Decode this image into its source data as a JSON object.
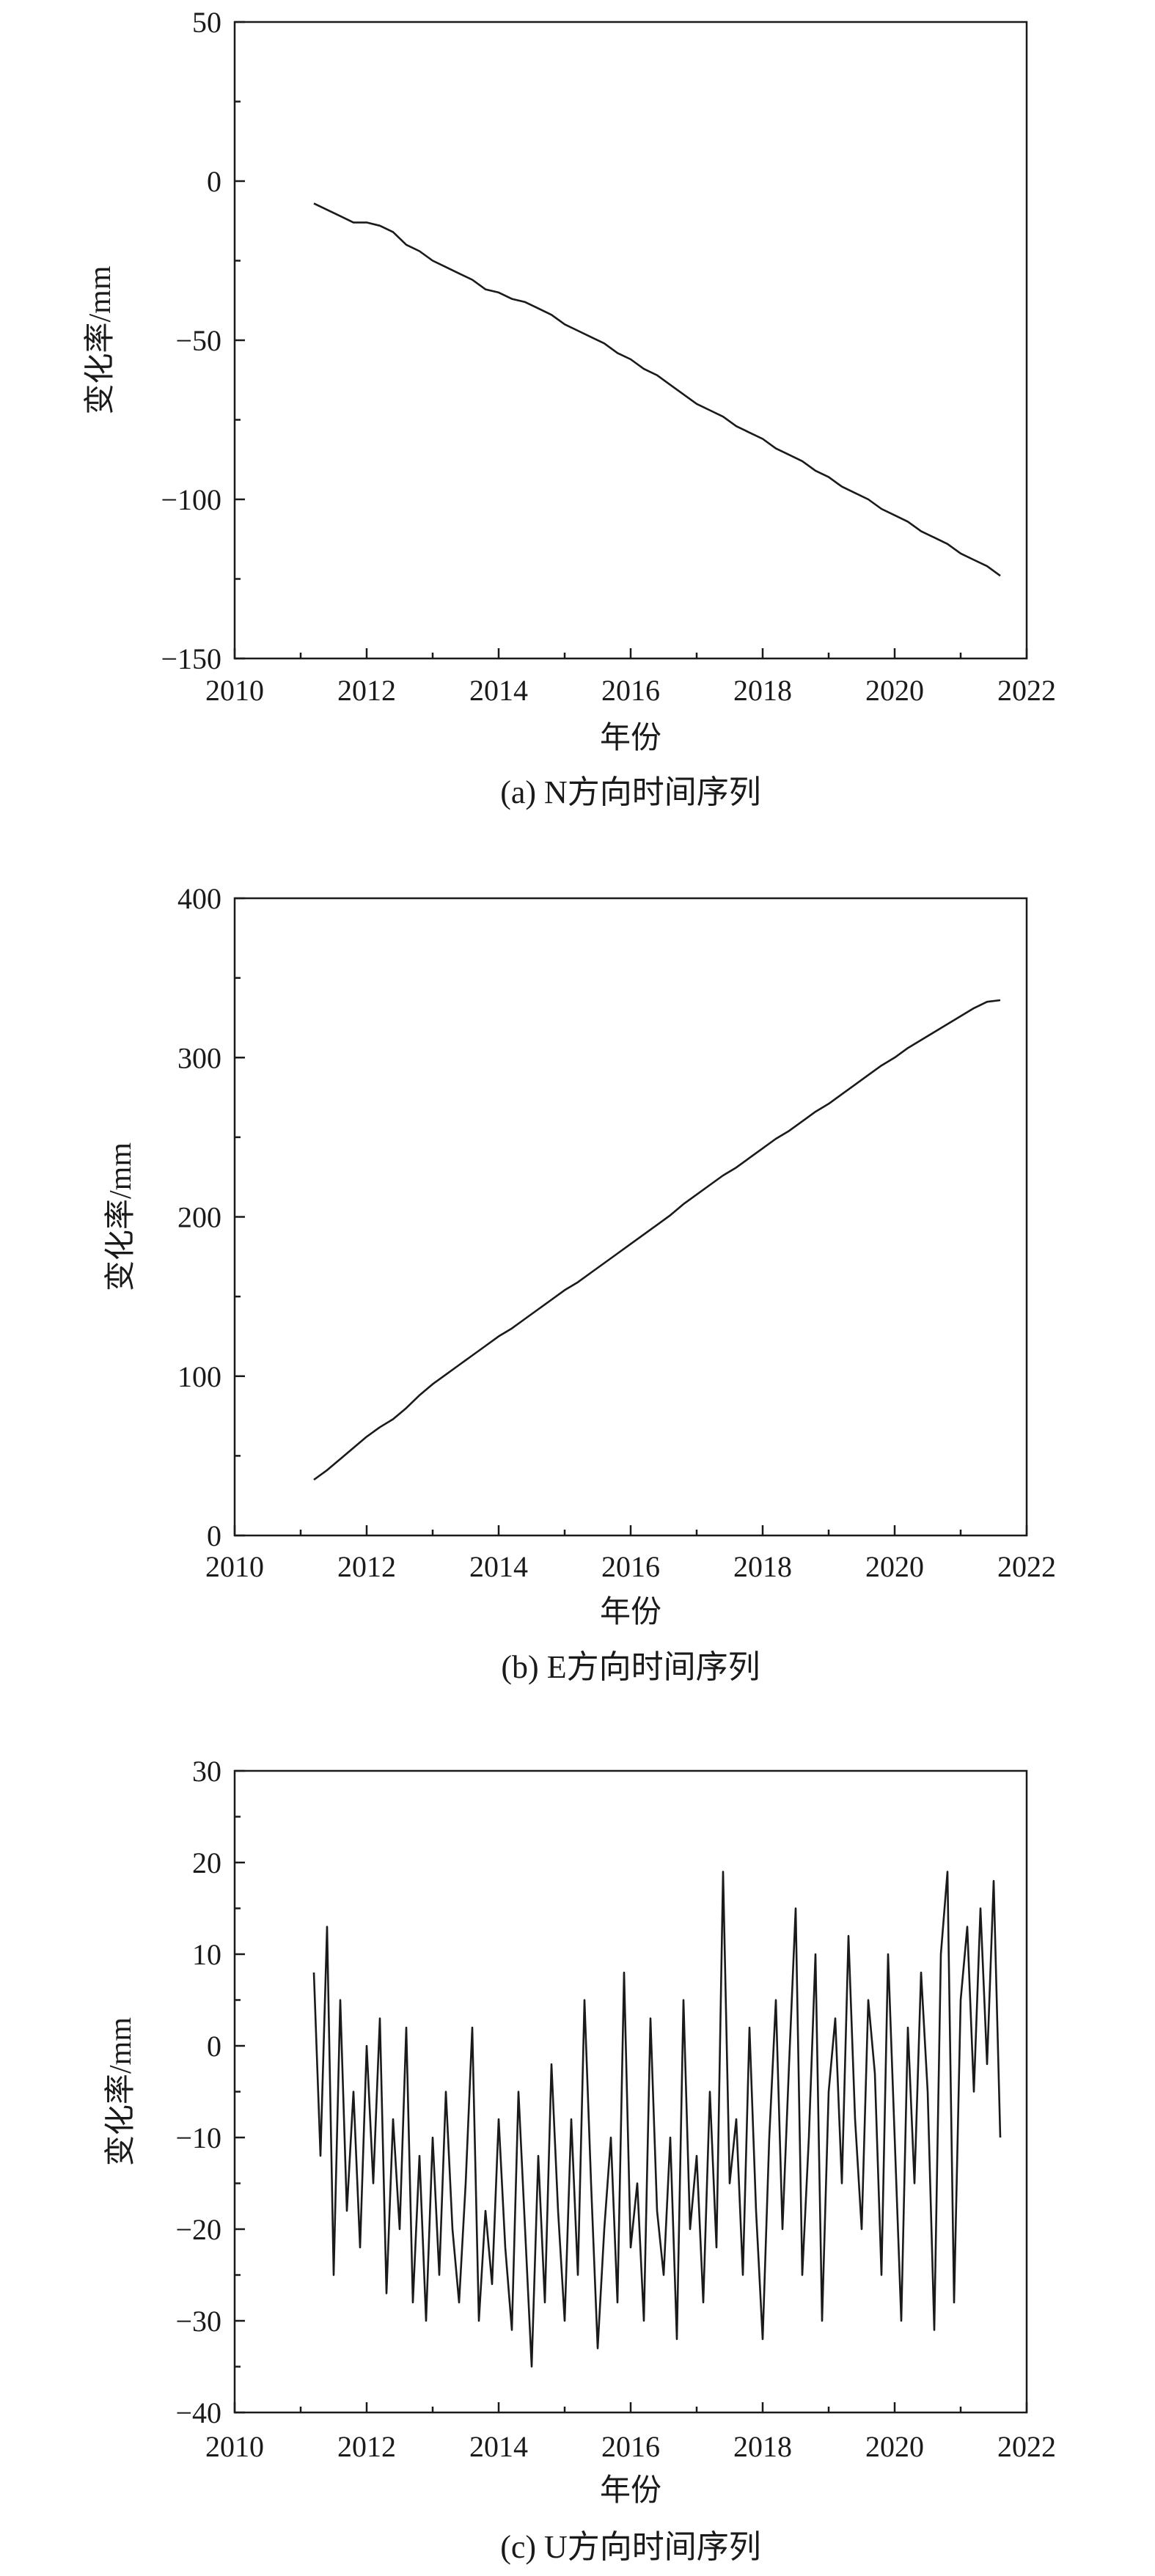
{
  "chart_data": [
    {
      "type": "line",
      "caption": "(a) N方向时间序列",
      "xlabel": "年份",
      "ylabel": "变化率/mm",
      "xlim": [
        2010,
        2022
      ],
      "ylim": [
        -150,
        50
      ],
      "xticks": [
        2010,
        2012,
        2014,
        2016,
        2018,
        2020,
        2022
      ],
      "xtick_labels": [
        "2010",
        "2012",
        "2014",
        "2016",
        "2018",
        "2020",
        "2022"
      ],
      "yticks": [
        -150,
        -100,
        -50,
        0,
        50
      ],
      "ytick_labels": [
        "−150",
        "−100",
        "−50",
        "0",
        "50"
      ],
      "grid": false,
      "series": [
        {
          "color": "#1a1a1a",
          "x": [
            2011.2,
            2011.4,
            2011.6,
            2011.8,
            2012.0,
            2012.2,
            2012.4,
            2012.6,
            2012.8,
            2013.0,
            2013.2,
            2013.4,
            2013.6,
            2013.8,
            2014.0,
            2014.2,
            2014.4,
            2014.6,
            2014.8,
            2015.0,
            2015.2,
            2015.4,
            2015.6,
            2015.8,
            2016.0,
            2016.2,
            2016.4,
            2016.6,
            2016.8,
            2017.0,
            2017.2,
            2017.4,
            2017.6,
            2017.8,
            2018.0,
            2018.2,
            2018.4,
            2018.6,
            2018.8,
            2019.0,
            2019.2,
            2019.4,
            2019.6,
            2019.8,
            2020.0,
            2020.2,
            2020.4,
            2020.6,
            2020.8,
            2021.0,
            2021.2,
            2021.4,
            2021.6
          ],
          "y": [
            -7,
            -9,
            -11,
            -13,
            -13,
            -14,
            -16,
            -20,
            -22,
            -25,
            -27,
            -29,
            -31,
            -34,
            -35,
            -37,
            -38,
            -40,
            -42,
            -45,
            -47,
            -49,
            -51,
            -54,
            -56,
            -59,
            -61,
            -64,
            -67,
            -70,
            -72,
            -74,
            -77,
            -79,
            -81,
            -84,
            -86,
            -88,
            -91,
            -93,
            -96,
            -98,
            -100,
            -103,
            -105,
            -107,
            -110,
            -112,
            -114,
            -117,
            -119,
            -121,
            -124
          ]
        }
      ]
    },
    {
      "type": "line",
      "caption": "(b) E方向时间序列",
      "xlabel": "年份",
      "ylabel": "变化率/mm",
      "xlim": [
        2010,
        2022
      ],
      "ylim": [
        0,
        400
      ],
      "xticks": [
        2010,
        2012,
        2014,
        2016,
        2018,
        2020,
        2022
      ],
      "xtick_labels": [
        "2010",
        "2012",
        "2014",
        "2016",
        "2018",
        "2020",
        "2022"
      ],
      "yticks": [
        0,
        100,
        200,
        300,
        400
      ],
      "ytick_labels": [
        "0",
        "100",
        "200",
        "300",
        "400"
      ],
      "grid": false,
      "series": [
        {
          "color": "#1a1a1a",
          "x": [
            2011.2,
            2011.4,
            2011.6,
            2011.8,
            2012.0,
            2012.2,
            2012.4,
            2012.6,
            2012.8,
            2013.0,
            2013.2,
            2013.4,
            2013.6,
            2013.8,
            2014.0,
            2014.2,
            2014.4,
            2014.6,
            2014.8,
            2015.0,
            2015.2,
            2015.4,
            2015.6,
            2015.8,
            2016.0,
            2016.2,
            2016.4,
            2016.6,
            2016.8,
            2017.0,
            2017.2,
            2017.4,
            2017.6,
            2017.8,
            2018.0,
            2018.2,
            2018.4,
            2018.6,
            2018.8,
            2019.0,
            2019.2,
            2019.4,
            2019.6,
            2019.8,
            2020.0,
            2020.2,
            2020.4,
            2020.6,
            2020.8,
            2021.0,
            2021.2,
            2021.4,
            2021.6
          ],
          "y": [
            35,
            41,
            48,
            55,
            62,
            68,
            73,
            80,
            88,
            95,
            101,
            107,
            113,
            119,
            125,
            130,
            136,
            142,
            148,
            154,
            159,
            165,
            171,
            177,
            183,
            189,
            195,
            201,
            208,
            214,
            220,
            226,
            231,
            237,
            243,
            249,
            254,
            260,
            266,
            271,
            277,
            283,
            289,
            295,
            300,
            306,
            311,
            316,
            321,
            326,
            331,
            335,
            336
          ]
        }
      ]
    },
    {
      "type": "line",
      "caption": "(c) U方向时间序列",
      "xlabel": "年份",
      "ylabel": "变化率/mm",
      "xlim": [
        2010,
        2022
      ],
      "ylim": [
        -40,
        30
      ],
      "xticks": [
        2010,
        2012,
        2014,
        2016,
        2018,
        2020,
        2022
      ],
      "xtick_labels": [
        "2010",
        "2012",
        "2014",
        "2016",
        "2018",
        "2020",
        "2022"
      ],
      "yticks": [
        -40,
        -30,
        -20,
        -10,
        0,
        10,
        20,
        30
      ],
      "ytick_labels": [
        "−40",
        "−30",
        "−20",
        "−10",
        "0",
        "10",
        "20",
        "30"
      ],
      "grid": false,
      "series": [
        {
          "color": "#1a1a1a",
          "x": [
            2011.2,
            2011.3,
            2011.4,
            2011.5,
            2011.6,
            2011.7,
            2011.8,
            2011.9,
            2012.0,
            2012.1,
            2012.2,
            2012.3,
            2012.4,
            2012.5,
            2012.6,
            2012.7,
            2012.8,
            2012.9,
            2013.0,
            2013.1,
            2013.2,
            2013.3,
            2013.4,
            2013.5,
            2013.6,
            2013.7,
            2013.8,
            2013.9,
            2014.0,
            2014.1,
            2014.2,
            2014.3,
            2014.4,
            2014.5,
            2014.6,
            2014.7,
            2014.8,
            2014.9,
            2015.0,
            2015.1,
            2015.2,
            2015.3,
            2015.4,
            2015.5,
            2015.6,
            2015.7,
            2015.8,
            2015.9,
            2016.0,
            2016.1,
            2016.2,
            2016.3,
            2016.4,
            2016.5,
            2016.6,
            2016.7,
            2016.8,
            2016.9,
            2017.0,
            2017.1,
            2017.2,
            2017.3,
            2017.4,
            2017.5,
            2017.6,
            2017.7,
            2017.8,
            2017.9,
            2018.0,
            2018.1,
            2018.2,
            2018.3,
            2018.4,
            2018.5,
            2018.6,
            2018.7,
            2018.8,
            2018.9,
            2019.0,
            2019.1,
            2019.2,
            2019.3,
            2019.4,
            2019.5,
            2019.6,
            2019.7,
            2019.8,
            2019.9,
            2020.0,
            2020.1,
            2020.2,
            2020.3,
            2020.4,
            2020.5,
            2020.6,
            2020.7,
            2020.8,
            2020.9,
            2021.0,
            2021.1,
            2021.2,
            2021.3,
            2021.4,
            2021.5,
            2021.6
          ],
          "y": [
            8,
            -12,
            13,
            -25,
            5,
            -18,
            -5,
            -22,
            0,
            -15,
            3,
            -27,
            -8,
            -20,
            2,
            -28,
            -12,
            -30,
            -10,
            -25,
            -5,
            -20,
            -28,
            -15,
            2,
            -30,
            -18,
            -26,
            -8,
            -22,
            -31,
            -5,
            -20,
            -35,
            -12,
            -28,
            -2,
            -18,
            -30,
            -8,
            -25,
            5,
            -15,
            -33,
            -20,
            -10,
            -28,
            8,
            -22,
            -15,
            -30,
            3,
            -18,
            -25,
            -10,
            -32,
            5,
            -20,
            -12,
            -28,
            -5,
            -22,
            19,
            -15,
            -8,
            -25,
            2,
            -18,
            -32,
            -10,
            5,
            -20,
            -2,
            15,
            -25,
            -10,
            10,
            -30,
            -5,
            3,
            -15,
            12,
            -8,
            -20,
            5,
            -3,
            -25,
            10,
            -10,
            -30,
            2,
            -15,
            8,
            -5,
            -31,
            10,
            19,
            -28,
            5,
            13,
            -5,
            15,
            -2,
            18,
            -10
          ]
        }
      ]
    }
  ]
}
